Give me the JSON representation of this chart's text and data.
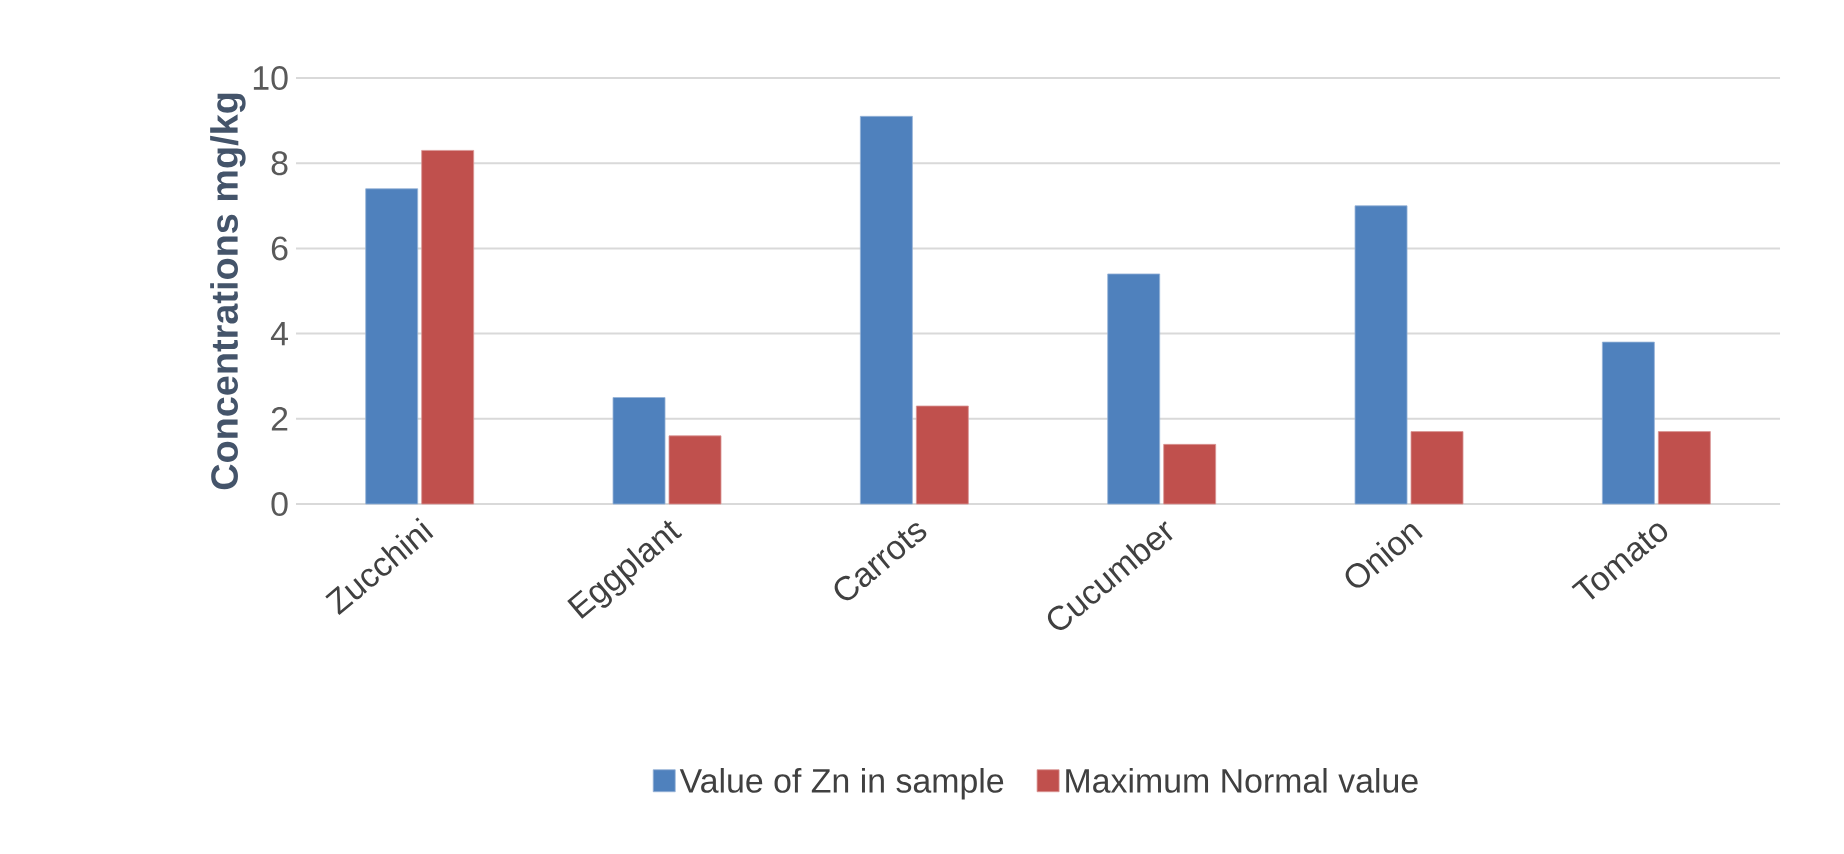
{
  "chart_data": {
    "type": "bar",
    "ylabel": "Concentrations  mg/kg",
    "categories": [
      "Zucchini",
      "Eggplant",
      "Carrots",
      "Cucumber",
      "Onion",
      "Tomato"
    ],
    "series": [
      {
        "name": "Value of Zn in sample",
        "color": "#4f81bd",
        "values": [
          7.4,
          2.5,
          9.1,
          5.4,
          7.0,
          3.8
        ]
      },
      {
        "name": "Maximum Normal value",
        "color": "#c0504d",
        "values": [
          8.3,
          1.6,
          2.3,
          1.4,
          1.7,
          1.7
        ]
      }
    ],
    "ylim": [
      0,
      10
    ],
    "yticks": [
      0,
      2,
      4,
      6,
      8,
      10
    ],
    "grid": "y",
    "legend": "bottom"
  }
}
